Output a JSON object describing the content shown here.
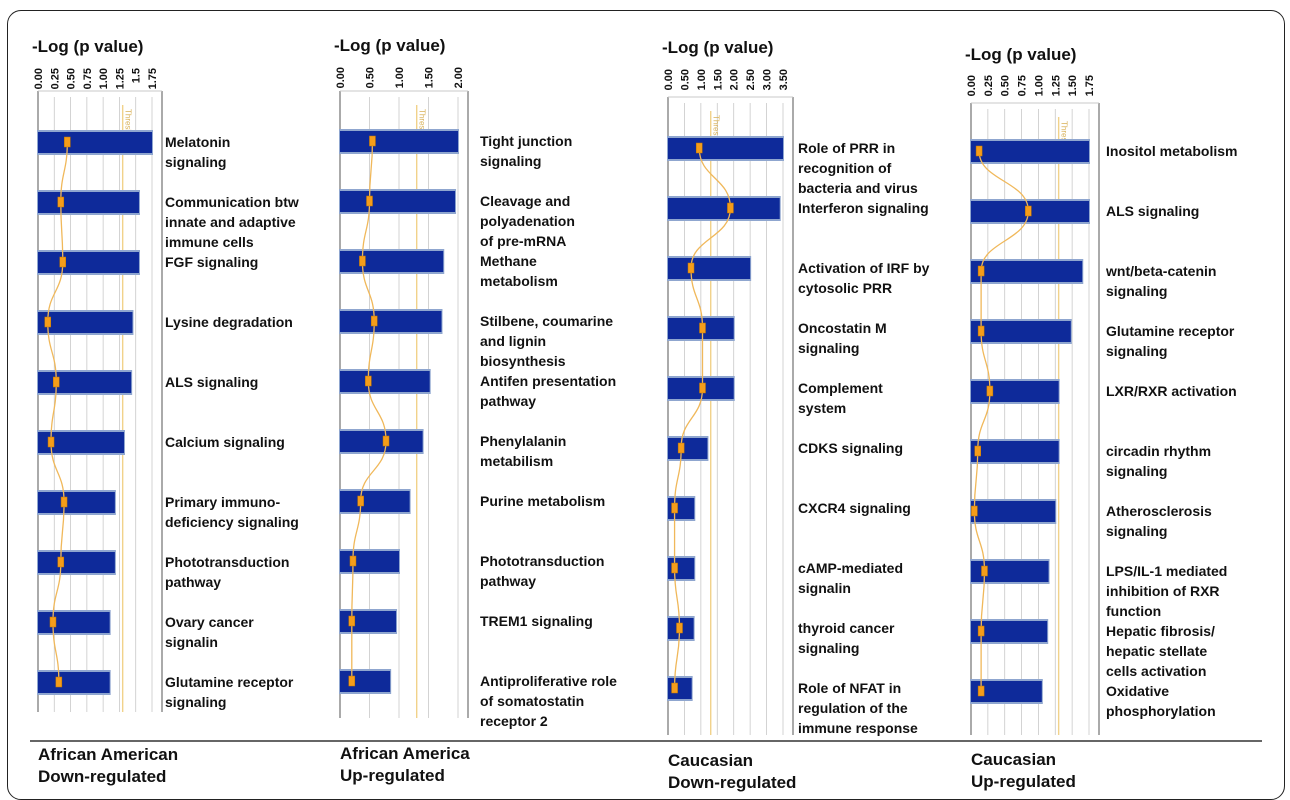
{
  "axis_title": "-Log (p value)",
  "colors": {
    "bar": "#0e2a9a",
    "bar_halo": "#8fa6cf",
    "ratio_line": "#f0b85a",
    "ratio_marker": "#f59d1a",
    "threshold": "#f1d28a",
    "grid": "#c8c8c8"
  },
  "chart_data": [
    {
      "type": "bar",
      "orientation": "horizontal",
      "title": "African American Down-regulated",
      "title_lines": [
        "African American",
        "Down-regulated"
      ],
      "xlabel": "-Log (p value)",
      "xlim": [
        0,
        1.75
      ],
      "ticks": [
        "0.00",
        "0.25",
        "0.50",
        "0.75",
        "1.00",
        "1.25",
        "1.5",
        "1.75"
      ],
      "threshold_label": "Threshold",
      "threshold": 1.3,
      "pathways": [
        {
          "lines": [
            "Melatonin",
            "signaling"
          ],
          "value": 1.75,
          "ratio": 0.45
        },
        {
          "lines": [
            "Communication btw",
            "innate and adaptive",
            "immune cells"
          ],
          "value": 1.55,
          "ratio": 0.35
        },
        {
          "lines": [
            "FGF signaling"
          ],
          "value": 1.55,
          "ratio": 0.38
        },
        {
          "lines": [
            "Lysine degradation"
          ],
          "value": 1.45,
          "ratio": 0.15
        },
        {
          "lines": [
            "ALS signaling"
          ],
          "value": 1.43,
          "ratio": 0.28
        },
        {
          "lines": [
            "Calcium signaling"
          ],
          "value": 1.32,
          "ratio": 0.2
        },
        {
          "lines": [
            "Primary immuno-",
            "deficiency signaling"
          ],
          "value": 1.18,
          "ratio": 0.4
        },
        {
          "lines": [
            "Phototransduction",
            "pathway"
          ],
          "value": 1.18,
          "ratio": 0.35
        },
        {
          "lines": [
            "Ovary cancer",
            "signalin"
          ],
          "value": 1.1,
          "ratio": 0.23
        },
        {
          "lines": [
            "Glutamine receptor",
            "signaling"
          ],
          "value": 1.1,
          "ratio": 0.32
        }
      ]
    },
    {
      "type": "bar",
      "orientation": "horizontal",
      "title": "African America Up-regulated",
      "title_lines": [
        "African America",
        "Up-regulated"
      ],
      "xlabel": "-Log (p value)",
      "xlim": [
        0,
        2.0
      ],
      "ticks": [
        "0.00",
        "0.50",
        "1.00",
        "1.50",
        "2.00"
      ],
      "threshold_label": "Threshold",
      "threshold": 1.3,
      "pathways": [
        {
          "lines": [
            "Tight junction",
            "signaling"
          ],
          "value": 2.0,
          "ratio": 0.55
        },
        {
          "lines": [
            "Cleavage and",
            "polyadenation",
            "of pre-mRNA"
          ],
          "value": 1.95,
          "ratio": 0.5
        },
        {
          "lines": [
            "Methane",
            "metabolism"
          ],
          "value": 1.75,
          "ratio": 0.38
        },
        {
          "lines": [
            "Stilbene, coumarine",
            "and lignin",
            "biosynthesis"
          ],
          "value": 1.72,
          "ratio": 0.58
        },
        {
          "lines": [
            "Antifen presentation",
            "pathway"
          ],
          "value": 1.52,
          "ratio": 0.48
        },
        {
          "lines": [
            "Phenylalanin",
            "metabilism"
          ],
          "value": 1.4,
          "ratio": 0.78
        },
        {
          "lines": [
            "Purine metabolism"
          ],
          "value": 1.18,
          "ratio": 0.35
        },
        {
          "lines": [
            "Phototransduction",
            "pathway"
          ],
          "value": 1.0,
          "ratio": 0.22
        },
        {
          "lines": [
            "TREM1 signaling"
          ],
          "value": 0.95,
          "ratio": 0.2
        },
        {
          "lines": [
            "Antiproliferative role",
            "of somatostatin",
            "receptor 2"
          ],
          "value": 0.85,
          "ratio": 0.2
        }
      ]
    },
    {
      "type": "bar",
      "orientation": "horizontal",
      "title": "Caucasian Down-regulated",
      "title_lines": [
        "Caucasian",
        "Down-regulated"
      ],
      "xlabel": "-Log (p value)",
      "xlim": [
        0,
        3.5
      ],
      "ticks": [
        "0.00",
        "0.50",
        "1.00",
        "1.50",
        "2.00",
        "2.50",
        "3.00",
        "3.50"
      ],
      "threshold_label": "Threshold",
      "threshold": 1.3,
      "pathways": [
        {
          "lines": [
            "Role of PRR in",
            "recognition of",
            "bacteria and virus"
          ],
          "value": 3.5,
          "ratio": 0.95
        },
        {
          "lines": [
            "Interferon signaling"
          ],
          "value": 3.4,
          "ratio": 1.9
        },
        {
          "lines": [
            "Activation of IRF by",
            "cytosolic PRR"
          ],
          "value": 2.5,
          "ratio": 0.7
        },
        {
          "lines": [
            "Oncostatin M",
            "signaling"
          ],
          "value": 2.0,
          "ratio": 1.05
        },
        {
          "lines": [
            "Complement",
            "system"
          ],
          "value": 2.0,
          "ratio": 1.05
        },
        {
          "lines": [
            "CDKS signaling"
          ],
          "value": 1.2,
          "ratio": 0.4
        },
        {
          "lines": [
            "CXCR4 signaling"
          ],
          "value": 0.8,
          "ratio": 0.2
        },
        {
          "lines": [
            "cAMP-mediated",
            "signalin"
          ],
          "value": 0.8,
          "ratio": 0.2
        },
        {
          "lines": [
            "thyroid cancer",
            "signaling"
          ],
          "value": 0.78,
          "ratio": 0.35
        },
        {
          "lines": [
            "Role of NFAT in",
            "regulation of the",
            "immune response"
          ],
          "value": 0.72,
          "ratio": 0.2
        }
      ]
    },
    {
      "type": "bar",
      "orientation": "horizontal",
      "title": "Caucasian Up-regulated",
      "title_lines": [
        "Caucasian",
        "Up-regulated"
      ],
      "xlabel": "-Log (p value)",
      "xlim": [
        0,
        1.75
      ],
      "ticks": [
        "0.00",
        "0.25",
        "0.50",
        "0.75",
        "1.00",
        "1.25",
        "1.50",
        "1.75"
      ],
      "threshold_label": "Threshold",
      "threshold": 1.3,
      "pathways": [
        {
          "lines": [
            "Inositol metabolism"
          ],
          "value": 1.75,
          "ratio": 0.12
        },
        {
          "lines": [
            "ALS signaling"
          ],
          "value": 1.75,
          "ratio": 0.85
        },
        {
          "lines": [
            "wnt/beta-catenin",
            "signaling"
          ],
          "value": 1.65,
          "ratio": 0.15
        },
        {
          "lines": [
            "Glutamine receptor",
            "signaling"
          ],
          "value": 1.48,
          "ratio": 0.15
        },
        {
          "lines": [
            "LXR/RXR activation"
          ],
          "value": 1.3,
          "ratio": 0.28
        },
        {
          "lines": [
            "circadin rhythm",
            "signaling"
          ],
          "value": 1.3,
          "ratio": 0.1
        },
        {
          "lines": [
            "Atherosclerosis",
            "signaling"
          ],
          "value": 1.25,
          "ratio": 0.05
        },
        {
          "lines": [
            "LPS/IL-1 mediated",
            "inhibition of RXR",
            "function"
          ],
          "value": 1.15,
          "ratio": 0.2
        },
        {
          "lines": [
            "Hepatic fibrosis/",
            "hepatic stellate",
            "cells activation"
          ],
          "value": 1.13,
          "ratio": 0.15
        },
        {
          "lines": [
            "Oxidative",
            "phosphorylation"
          ],
          "value": 1.05,
          "ratio": 0.15
        }
      ]
    }
  ]
}
